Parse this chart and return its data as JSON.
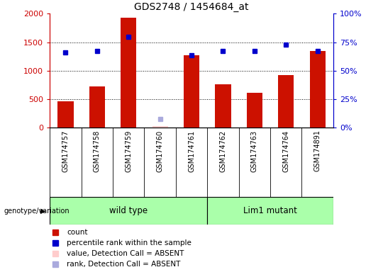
{
  "title": "GDS2748 / 1454684_at",
  "samples": [
    "GSM174757",
    "GSM174758",
    "GSM174759",
    "GSM174760",
    "GSM174761",
    "GSM174762",
    "GSM174763",
    "GSM174764",
    "GSM174891"
  ],
  "counts": [
    470,
    720,
    1930,
    30,
    1270,
    760,
    610,
    920,
    1340
  ],
  "percentile_ranks": [
    1320,
    1350,
    1590,
    null,
    1275,
    1345,
    1340,
    1460,
    1350
  ],
  "absent_flags": [
    false,
    false,
    false,
    true,
    false,
    false,
    false,
    false,
    false
  ],
  "absent_bar_val": [
    null,
    null,
    null,
    30,
    null,
    null,
    null,
    null,
    null
  ],
  "absent_rank_val": [
    null,
    null,
    null,
    150,
    null,
    null,
    null,
    null,
    null
  ],
  "ylim_left": [
    0,
    2000
  ],
  "ylim_right": [
    0,
    100
  ],
  "yticks_left": [
    0,
    500,
    1000,
    1500,
    2000
  ],
  "yticks_right": [
    0,
    25,
    50,
    75,
    100
  ],
  "ytick_labels_left": [
    "0",
    "500",
    "1000",
    "1500",
    "2000"
  ],
  "ytick_labels_right": [
    "0%",
    "25%",
    "50%",
    "75%",
    "100%"
  ],
  "bar_color": "#cc1100",
  "dot_color": "#0000cc",
  "absent_bar_color": "#ffcccc",
  "absent_dot_color": "#aaaadd",
  "left_axis_color": "#cc0000",
  "right_axis_color": "#0000cc",
  "cell_bg": "#d8d8d8",
  "plot_bg": "#ffffff",
  "group_color": "#aaffaa",
  "grid_yticks": [
    500,
    1000,
    1500
  ],
  "wt_range": [
    0,
    4
  ],
  "lm_range": [
    5,
    8
  ],
  "wt_label": "wild type",
  "lm_label": "Lim1 mutant",
  "genotype_label": "genotype/variation",
  "legend_items": [
    {
      "label": "count",
      "color": "#cc1100"
    },
    {
      "label": "percentile rank within the sample",
      "color": "#0000cc"
    },
    {
      "label": "value, Detection Call = ABSENT",
      "color": "#ffcccc"
    },
    {
      "label": "rank, Detection Call = ABSENT",
      "color": "#aaaadd"
    }
  ]
}
